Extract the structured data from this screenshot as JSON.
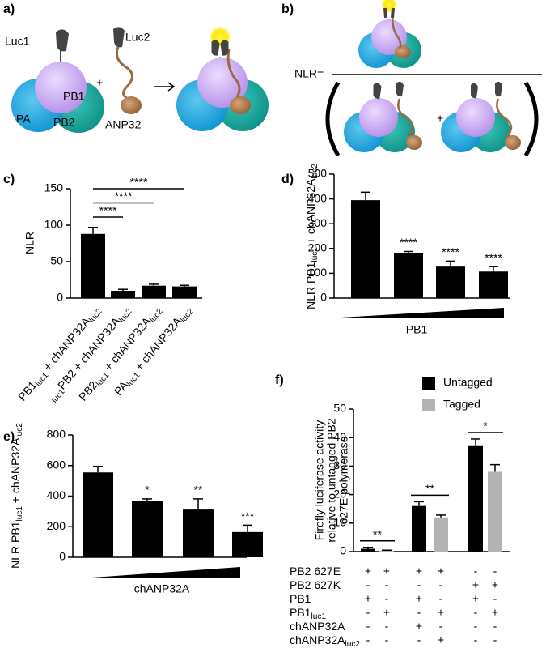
{
  "diagram_a": {
    "panel": "a)",
    "luc1": "Luc1",
    "luc2": "Luc2",
    "pb1": "PB1",
    "pa": "PA",
    "pb2": "PB2",
    "anp32": "ANP32",
    "plus": "+"
  },
  "diagram_b": {
    "panel": "b)",
    "nlr": "NLR=",
    "plus": "+"
  },
  "chart_data": [
    {
      "type": "bar",
      "panel": "c)",
      "ylabel": "NLR",
      "categories": [
        [
          {
            "text": "PB1"
          },
          {
            "text": "luc1",
            "sub": true
          },
          {
            "text": " + chANP32A"
          },
          {
            "text": "luc2",
            "sub": true
          }
        ],
        [
          {
            "text": "luc1",
            "sub": true
          },
          {
            "text": "PB2 + chANP32A"
          },
          {
            "text": "luc2",
            "sub": true
          }
        ],
        [
          {
            "text": "PB2"
          },
          {
            "text": "luc1",
            "sub": true
          },
          {
            "text": " + chANP32A"
          },
          {
            "text": "luc2",
            "sub": true
          }
        ],
        [
          {
            "text": "PA"
          },
          {
            "text": "luc1",
            "sub": true
          },
          {
            "text": " + chANP32A"
          },
          {
            "text": "luc2",
            "sub": true
          }
        ]
      ],
      "values": [
        88,
        10,
        17,
        16
      ],
      "errors": [
        9,
        2,
        2,
        1.5
      ],
      "color": "#000000",
      "ylim": [
        0,
        150
      ],
      "yticks": [
        0,
        50,
        100,
        150
      ],
      "brackets": [
        {
          "from": 0,
          "to": 1,
          "label": "****"
        },
        {
          "from": 0,
          "to": 2,
          "label": "****"
        },
        {
          "from": 0,
          "to": 3,
          "label": "****"
        }
      ]
    },
    {
      "type": "bar",
      "panel": "d)",
      "ylabel": [
        {
          "text": "NLR PB1"
        },
        {
          "text": "luc1",
          "sub": true
        },
        {
          "text": " + chANP32A"
        },
        {
          "text": "luc2",
          "sub": true
        }
      ],
      "xlabel": "PB1",
      "values": [
        395,
        183,
        127,
        107
      ],
      "errors": [
        32,
        5,
        22,
        20
      ],
      "color": "#000000",
      "significance": [
        null,
        "****",
        "****",
        "****"
      ],
      "ylim": [
        0,
        500
      ],
      "yticks": [
        0,
        100,
        200,
        300,
        400,
        500
      ]
    },
    {
      "type": "bar",
      "panel": "e)",
      "ylabel": [
        {
          "text": "NLR PB1"
        },
        {
          "text": "luc1",
          "sub": true
        },
        {
          "text": " + chANP32A"
        },
        {
          "text": "luc2",
          "sub": true
        }
      ],
      "xlabel": "chANP32A",
      "values": [
        555,
        370,
        312,
        165
      ],
      "errors": [
        40,
        12,
        70,
        45
      ],
      "color": "#000000",
      "significance": [
        null,
        "*",
        "**",
        "***"
      ],
      "ylim": [
        0,
        800
      ],
      "yticks": [
        0,
        200,
        400,
        600,
        800
      ]
    },
    {
      "type": "grouped_bar",
      "panel": "f)",
      "ylabel": [
        "Firefly  luciferase activity",
        "relative to untagged PB2",
        "627E polymerase"
      ],
      "series": [
        {
          "name": "Untagged",
          "color": "#000000",
          "values": [
            1,
            16,
            37
          ],
          "errors": [
            0.5,
            1.5,
            2.5
          ]
        },
        {
          "name": "Tagged",
          "color": "#b3b3b3",
          "values": [
            0.3,
            12,
            28
          ],
          "errors": [
            0.2,
            0.8,
            2.5
          ]
        }
      ],
      "significance": [
        "**",
        "**",
        "*"
      ],
      "ylim": [
        0,
        50
      ],
      "yticks": [
        0,
        10,
        20,
        30,
        40,
        50
      ],
      "table": [
        {
          "label": [
            {
              "text": "PB2 627E"
            }
          ],
          "cells": [
            "+",
            "+",
            "+",
            "+",
            "-",
            "-"
          ]
        },
        {
          "label": [
            {
              "text": "PB2 627K"
            }
          ],
          "cells": [
            "-",
            "-",
            "-",
            "-",
            "+",
            "+"
          ]
        },
        {
          "label": [
            {
              "text": "PB1"
            }
          ],
          "cells": [
            "+",
            "-",
            "+",
            "-",
            "+",
            "-"
          ]
        },
        {
          "label": [
            {
              "text": "PB1"
            },
            {
              "text": "luc1",
              "sub": true
            }
          ],
          "cells": [
            "-",
            "+",
            "-",
            "+",
            "-",
            "+"
          ]
        },
        {
          "label": [
            {
              "text": "chANP32A"
            }
          ],
          "cells": [
            "-",
            "-",
            "+",
            "-",
            "-",
            "-"
          ]
        },
        {
          "label": [
            {
              "text": "chANP32A"
            },
            {
              "text": "luc2",
              "sub": true
            }
          ],
          "cells": [
            "-",
            "-",
            "-",
            "+",
            "-",
            "-"
          ]
        }
      ]
    }
  ]
}
